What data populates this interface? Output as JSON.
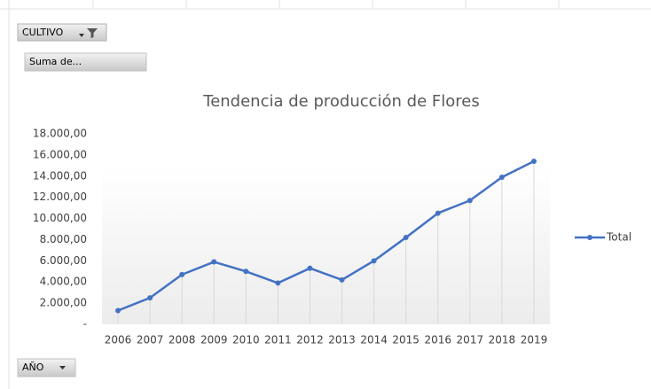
{
  "chart_data": {
    "type": "line",
    "title": "Tendencia de producción de Flores",
    "categories": [
      "2006",
      "2007",
      "2008",
      "2009",
      "2010",
      "2011",
      "2012",
      "2013",
      "2014",
      "2015",
      "2016",
      "2017",
      "2018",
      "2019"
    ],
    "series": [
      {
        "name": "Total",
        "color": "#4472c4",
        "values": [
          1300,
          2500,
          4700,
          5900,
          5000,
          3900,
          5300,
          4200,
          6000,
          8200,
          10500,
          11700,
          13900,
          15400
        ]
      }
    ],
    "ylim": [
      0,
      18000
    ],
    "yticks": [
      {
        "value": 0,
        "label": "-"
      },
      {
        "value": 2000,
        "label": "2.000,00"
      },
      {
        "value": 4000,
        "label": "4.000,00"
      },
      {
        "value": 6000,
        "label": "6.000,00"
      },
      {
        "value": 8000,
        "label": "8.000,00"
      },
      {
        "value": 10000,
        "label": "10.000,00"
      },
      {
        "value": 12000,
        "label": "12.000,00"
      },
      {
        "value": 14000,
        "label": "14.000,00"
      },
      {
        "value": 16000,
        "label": "16.000,00"
      },
      {
        "value": 18000,
        "label": "18.000,00"
      }
    ],
    "drop_lines": true,
    "legend": "right"
  },
  "ui": {
    "filter_button": "CULTIVO",
    "value_button": "Suma de...",
    "axis_button": "AÑO"
  }
}
